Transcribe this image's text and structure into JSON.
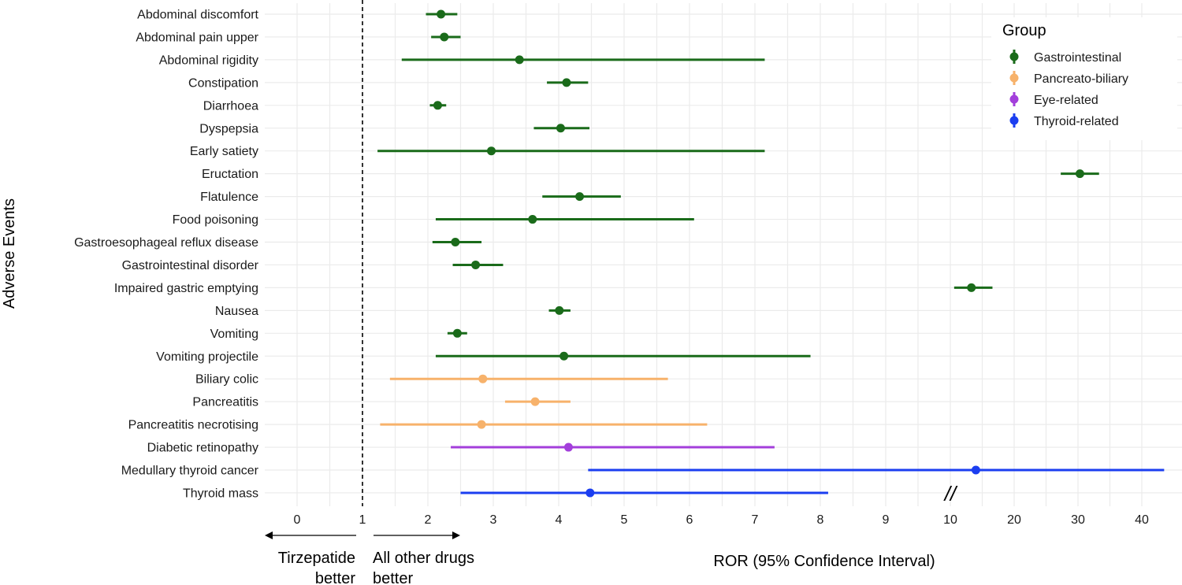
{
  "chart_data": {
    "type": "forest",
    "xlabel": "ROR (95% Confidence Interval)",
    "ylabel": "Adverse Events",
    "reference_line": 1,
    "x_ticks": [
      "0",
      "1",
      "2",
      "3",
      "4",
      "5",
      "6",
      "7",
      "8",
      "9",
      "10",
      "20",
      "30",
      "40"
    ],
    "axis_break_label": "//",
    "grid": true,
    "legend": {
      "title": "Group",
      "position": "top-right",
      "items": [
        {
          "label": "Gastrointestinal",
          "color": "#1a6b1a"
        },
        {
          "label": "Pancreato-biliary",
          "color": "#f7b26b"
        },
        {
          "label": "Eye-related",
          "color": "#a33fdb"
        },
        {
          "label": "Thyroid-related",
          "color": "#1b3ef0"
        }
      ]
    },
    "annotations": {
      "left_line1": "Tirzepatide",
      "left_line2": "better",
      "right_line1": "All other drugs",
      "right_line2": "better"
    },
    "rows": [
      {
        "label": "Abdominal discomfort",
        "group": "Gastrointestinal",
        "ror": 2.2,
        "low": 1.97,
        "high": 2.45
      },
      {
        "label": "Abdominal pain upper",
        "group": "Gastrointestinal",
        "ror": 2.25,
        "low": 2.05,
        "high": 2.5
      },
      {
        "label": "Abdominal rigidity",
        "group": "Gastrointestinal",
        "ror": 3.4,
        "low": 1.6,
        "high": 7.15
      },
      {
        "label": "Constipation",
        "group": "Gastrointestinal",
        "ror": 4.12,
        "low": 3.82,
        "high": 4.45
      },
      {
        "label": "Diarrhoea",
        "group": "Gastrointestinal",
        "ror": 2.15,
        "low": 2.03,
        "high": 2.28
      },
      {
        "label": "Dyspepsia",
        "group": "Gastrointestinal",
        "ror": 4.03,
        "low": 3.62,
        "high": 4.47
      },
      {
        "label": "Early satiety",
        "group": "Gastrointestinal",
        "ror": 2.97,
        "low": 1.23,
        "high": 7.15
      },
      {
        "label": "Eructation",
        "group": "Gastrointestinal",
        "ror": 30.3,
        "low": 27.3,
        "high": 33.3
      },
      {
        "label": "Flatulence",
        "group": "Gastrointestinal",
        "ror": 4.32,
        "low": 3.75,
        "high": 4.95
      },
      {
        "label": "Food poisoning",
        "group": "Gastrointestinal",
        "ror": 3.6,
        "low": 2.12,
        "high": 6.07
      },
      {
        "label": "Gastroesophageal reflux disease",
        "group": "Gastrointestinal",
        "ror": 2.42,
        "low": 2.07,
        "high": 2.82
      },
      {
        "label": "Gastrointestinal disorder",
        "group": "Gastrointestinal",
        "ror": 2.73,
        "low": 2.38,
        "high": 3.15
      },
      {
        "label": "Impaired gastric emptying",
        "group": "Gastrointestinal",
        "ror": 13.3,
        "low": 10.6,
        "high": 16.6
      },
      {
        "label": "Nausea",
        "group": "Gastrointestinal",
        "ror": 4.01,
        "low": 3.85,
        "high": 4.18
      },
      {
        "label": "Vomiting",
        "group": "Gastrointestinal",
        "ror": 2.45,
        "low": 2.3,
        "high": 2.6
      },
      {
        "label": "Vomiting projectile",
        "group": "Gastrointestinal",
        "ror": 4.08,
        "low": 2.12,
        "high": 7.85
      },
      {
        "label": "Biliary colic",
        "group": "Pancreato-biliary",
        "ror": 2.84,
        "low": 1.42,
        "high": 5.67
      },
      {
        "label": "Pancreatitis",
        "group": "Pancreato-biliary",
        "ror": 3.64,
        "low": 3.18,
        "high": 4.18
      },
      {
        "label": "Pancreatitis necrotising",
        "group": "Pancreato-biliary",
        "ror": 2.82,
        "low": 1.27,
        "high": 6.27
      },
      {
        "label": "Diabetic retinopathy",
        "group": "Eye-related",
        "ror": 4.15,
        "low": 2.35,
        "high": 7.3
      },
      {
        "label": "Medullary thyroid cancer",
        "group": "Thyroid-related",
        "ror": 14.0,
        "low": 4.45,
        "high": 43.5
      },
      {
        "label": "Thyroid mass",
        "group": "Thyroid-related",
        "ror": 4.48,
        "low": 2.5,
        "high": 8.12
      }
    ]
  }
}
